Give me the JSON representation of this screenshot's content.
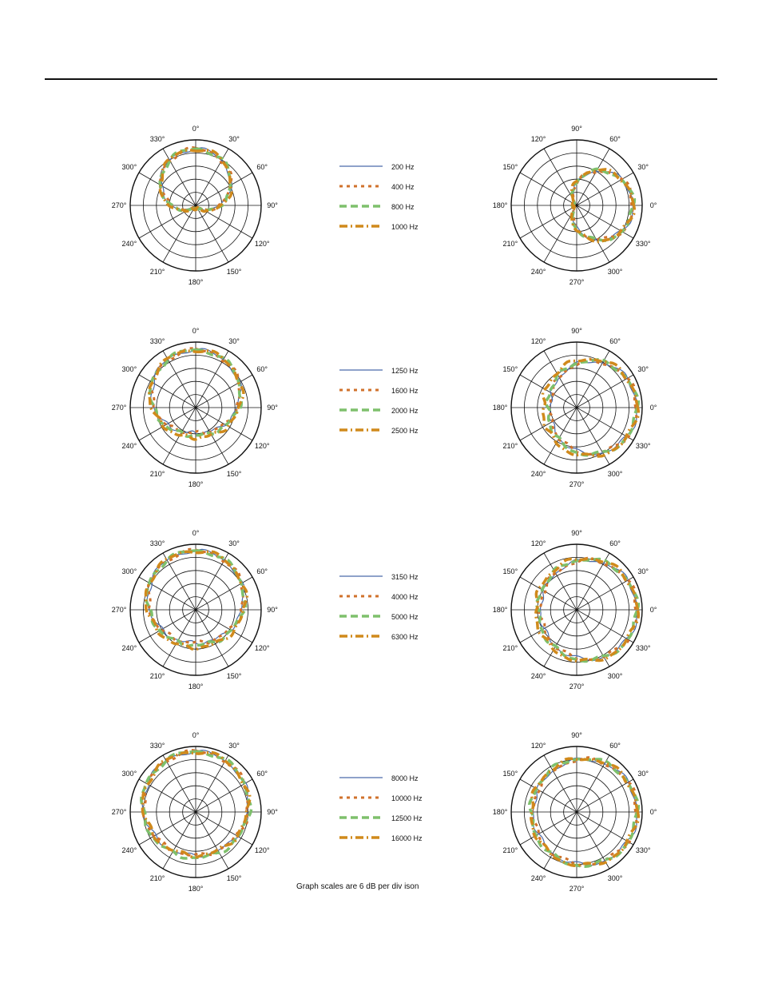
{
  "colors": {
    "s1": "#4a6aab",
    "s2": "#d0722c",
    "s3": "#7ec06c",
    "s4": "#d08a1c"
  },
  "footnote": "Graph scales are 6 dB per div ison",
  "chart_data": [
    {
      "type": "polar-group",
      "series": [
        {
          "name": "200 Hz",
          "style": "solid"
        },
        {
          "name": "400 Hz",
          "style": "dash"
        },
        {
          "name": "800 Hz",
          "style": "longdash"
        },
        {
          "name": "1000 Hz",
          "style": "dashdot"
        }
      ],
      "horizontal": {
        "tick_labels": [
          "0°",
          "30°",
          "60°",
          "90°",
          "120°",
          "150°",
          "180°",
          "210°",
          "240°",
          "270°",
          "300°",
          "330°"
        ],
        "pattern": "cardioid",
        "params": [
          0.86,
          0.42,
          0.44,
          0.46
        ]
      },
      "vertical": {
        "tick_labels": [
          "0°",
          "30°",
          "60°",
          "90°",
          "120°",
          "150°",
          "180°",
          "210°",
          "240°",
          "270°",
          "300°",
          "330°"
        ],
        "pattern": "cardioid",
        "params": [
          0.86,
          0.4,
          0.42,
          0.44
        ]
      }
    },
    {
      "type": "polar-group",
      "series": [
        {
          "name": "1250 Hz",
          "style": "solid"
        },
        {
          "name": "1600 Hz",
          "style": "dash"
        },
        {
          "name": "2000 Hz",
          "style": "longdash"
        },
        {
          "name": "2500 Hz",
          "style": "dashdot"
        }
      ],
      "horizontal": {
        "tick_labels": [
          "0°",
          "30°",
          "60°",
          "90°",
          "120°",
          "150°",
          "180°",
          "210°",
          "240°",
          "270°",
          "300°",
          "330°"
        ],
        "pattern": "cardioid",
        "params": [
          0.88,
          0.72,
          0.74,
          0.76
        ]
      },
      "vertical": {
        "tick_labels": [
          "0°",
          "30°",
          "60°",
          "90°",
          "120°",
          "150°",
          "180°",
          "210°",
          "240°",
          "270°",
          "300°",
          "330°"
        ],
        "pattern": "cardioid",
        "params": [
          0.92,
          0.72,
          0.74,
          0.78
        ]
      }
    },
    {
      "type": "polar-group",
      "series": [
        {
          "name": "3150 Hz",
          "style": "solid"
        },
        {
          "name": "4000 Hz",
          "style": "dash"
        },
        {
          "name": "5000 Hz",
          "style": "longdash"
        },
        {
          "name": "6300 Hz",
          "style": "dashdot"
        }
      ],
      "horizontal": {
        "tick_labels": [
          "0°",
          "30°",
          "60°",
          "90°",
          "120°",
          "150°",
          "180°",
          "210°",
          "240°",
          "270°",
          "300°",
          "330°"
        ],
        "pattern": "cardioid",
        "params": [
          0.9,
          0.78,
          0.8,
          0.82
        ]
      },
      "vertical": {
        "tick_labels": [
          "0°",
          "30°",
          "60°",
          "90°",
          "120°",
          "150°",
          "180°",
          "210°",
          "240°",
          "270°",
          "300°",
          "330°"
        ],
        "pattern": "cardioid",
        "params": [
          0.92,
          0.8,
          0.82,
          0.84
        ]
      }
    },
    {
      "type": "polar-group",
      "series": [
        {
          "name": "8000 Hz",
          "style": "solid"
        },
        {
          "name": "10000 Hz",
          "style": "dash"
        },
        {
          "name": "12500 Hz",
          "style": "longdash"
        },
        {
          "name": "16000 Hz",
          "style": "dashdot"
        }
      ],
      "horizontal": {
        "tick_labels": [
          "0°",
          "30°",
          "60°",
          "90°",
          "120°",
          "150°",
          "180°",
          "210°",
          "240°",
          "270°",
          "300°",
          "330°"
        ],
        "pattern": "cardioid",
        "params": [
          0.92,
          0.86,
          0.88,
          0.86
        ]
      },
      "vertical": {
        "tick_labels": [
          "0°",
          "30°",
          "60°",
          "90°",
          "120°",
          "150°",
          "180°",
          "210°",
          "240°",
          "270°",
          "300°",
          "330°"
        ],
        "pattern": "cardioid",
        "params": [
          0.92,
          0.86,
          0.88,
          0.88
        ]
      }
    }
  ]
}
